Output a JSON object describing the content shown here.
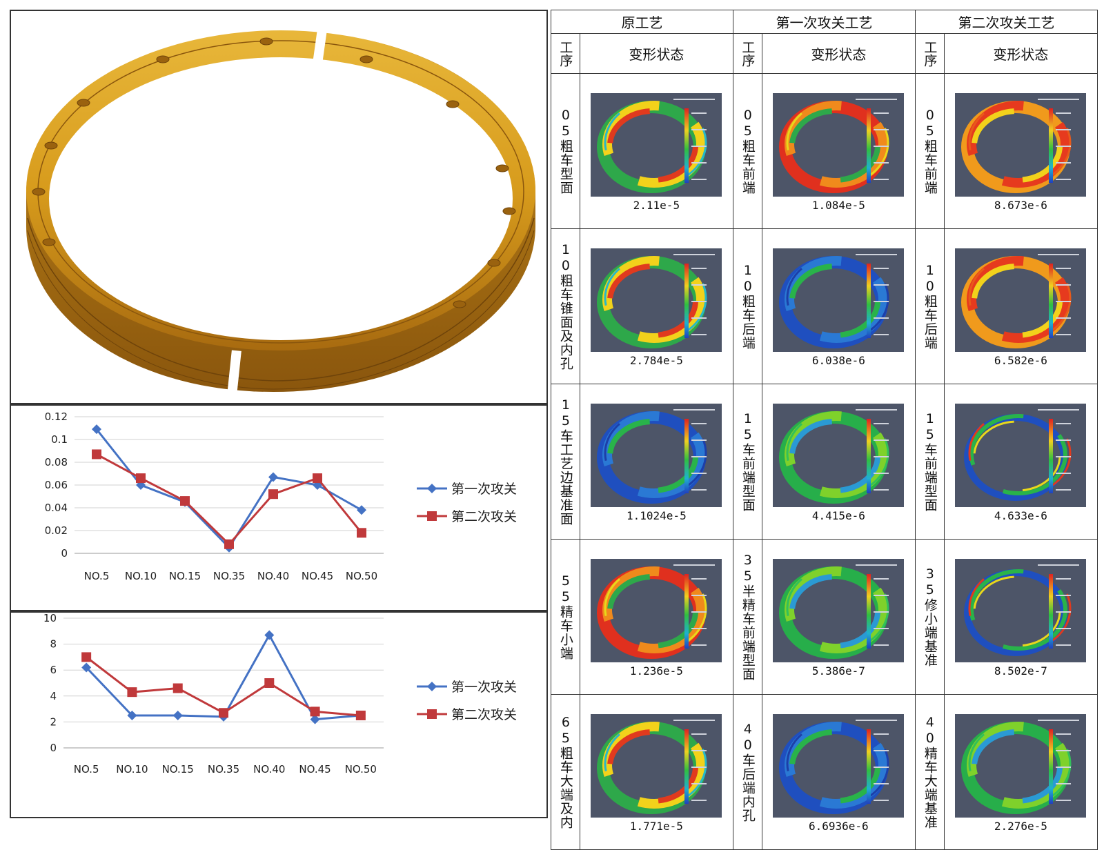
{
  "table": {
    "process_headers": [
      "原工艺",
      "第一次攻关工艺",
      "第二次攻关工艺"
    ],
    "step_header": "工序",
    "state_header": "变形状态",
    "rows": [
      [
        {
          "step": "05粗车型面",
          "value": "2.11e-5",
          "palette": "mixed"
        },
        {
          "step": "05粗车前端",
          "value": "1.084e-5",
          "palette": "red"
        },
        {
          "step": "05粗车前端",
          "value": "8.673e-6",
          "palette": "orange"
        }
      ],
      [
        {
          "step": "10粗车锥面及内孔",
          "value": "2.784e-5",
          "palette": "mixed"
        },
        {
          "step": "10粗车后端",
          "value": "6.038e-6",
          "palette": "blue"
        },
        {
          "step": "10粗车后端",
          "value": "6.582e-6",
          "palette": "orange"
        }
      ],
      [
        {
          "step": "15车工艺边基准面",
          "value": "1.1024e-5",
          "palette": "blue"
        },
        {
          "step": "15车前端型面",
          "value": "4.415e-6",
          "palette": "green"
        },
        {
          "step": "15车前端型面",
          "value": "4.633e-6",
          "palette": "thin"
        }
      ],
      [
        {
          "step": "55精车小端",
          "value": "1.236e-5",
          "palette": "red"
        },
        {
          "step": "35半精车前端型面",
          "value": "5.386e-7",
          "palette": "green"
        },
        {
          "step": "35修小端基准",
          "value": "8.502e-7",
          "palette": "thin"
        }
      ],
      [
        {
          "step": "65粗车大端及内",
          "value": "1.771e-5",
          "palette": "mixed"
        },
        {
          "step": "40车后端内孔",
          "value": "6.6936e-6",
          "palette": "blue"
        },
        {
          "step": "40精车大端基准",
          "value": "2.276e-5",
          "palette": "green"
        }
      ]
    ]
  },
  "colors": {
    "series1": "#4472c4",
    "series2": "#c0393b",
    "ring_gold": "#d79b1c",
    "ring_dark": "#a86b10",
    "sim_bg": "#4d5568"
  },
  "chart_data": [
    {
      "type": "line",
      "categories": [
        "NO.5",
        "NO.10",
        "NO.15",
        "NO.35",
        "NO.40",
        "NO.45",
        "NO.50"
      ],
      "series": [
        {
          "name": "第一次攻关",
          "values": [
            0.109,
            0.06,
            0.045,
            0.005,
            0.067,
            0.06,
            0.038
          ],
          "marker": "diamond"
        },
        {
          "name": "第二次攻关",
          "values": [
            0.087,
            0.066,
            0.046,
            0.008,
            0.052,
            0.066,
            0.018
          ],
          "marker": "square"
        }
      ],
      "yticks": [
        "0",
        "0.02",
        "0.04",
        "0.06",
        "0.08",
        "0.1",
        "0.12"
      ],
      "ylim": [
        0,
        0.12
      ],
      "grid": true,
      "legend": "right"
    },
    {
      "type": "line",
      "categories": [
        "NO.5",
        "NO.10",
        "NO.15",
        "NO.35",
        "NO.40",
        "NO.45",
        "NO.50"
      ],
      "series": [
        {
          "name": "第一次攻关",
          "values": [
            6.2,
            2.5,
            2.5,
            2.4,
            8.7,
            2.2,
            2.5
          ],
          "marker": "diamond"
        },
        {
          "name": "第二次攻关",
          "values": [
            7.0,
            4.3,
            4.6,
            2.7,
            5.0,
            2.8,
            2.5
          ],
          "marker": "square"
        }
      ],
      "yticks": [
        "0",
        "2",
        "4",
        "6",
        "8",
        "10"
      ],
      "ylim": [
        0,
        10
      ],
      "grid": true,
      "legend": "right"
    }
  ]
}
